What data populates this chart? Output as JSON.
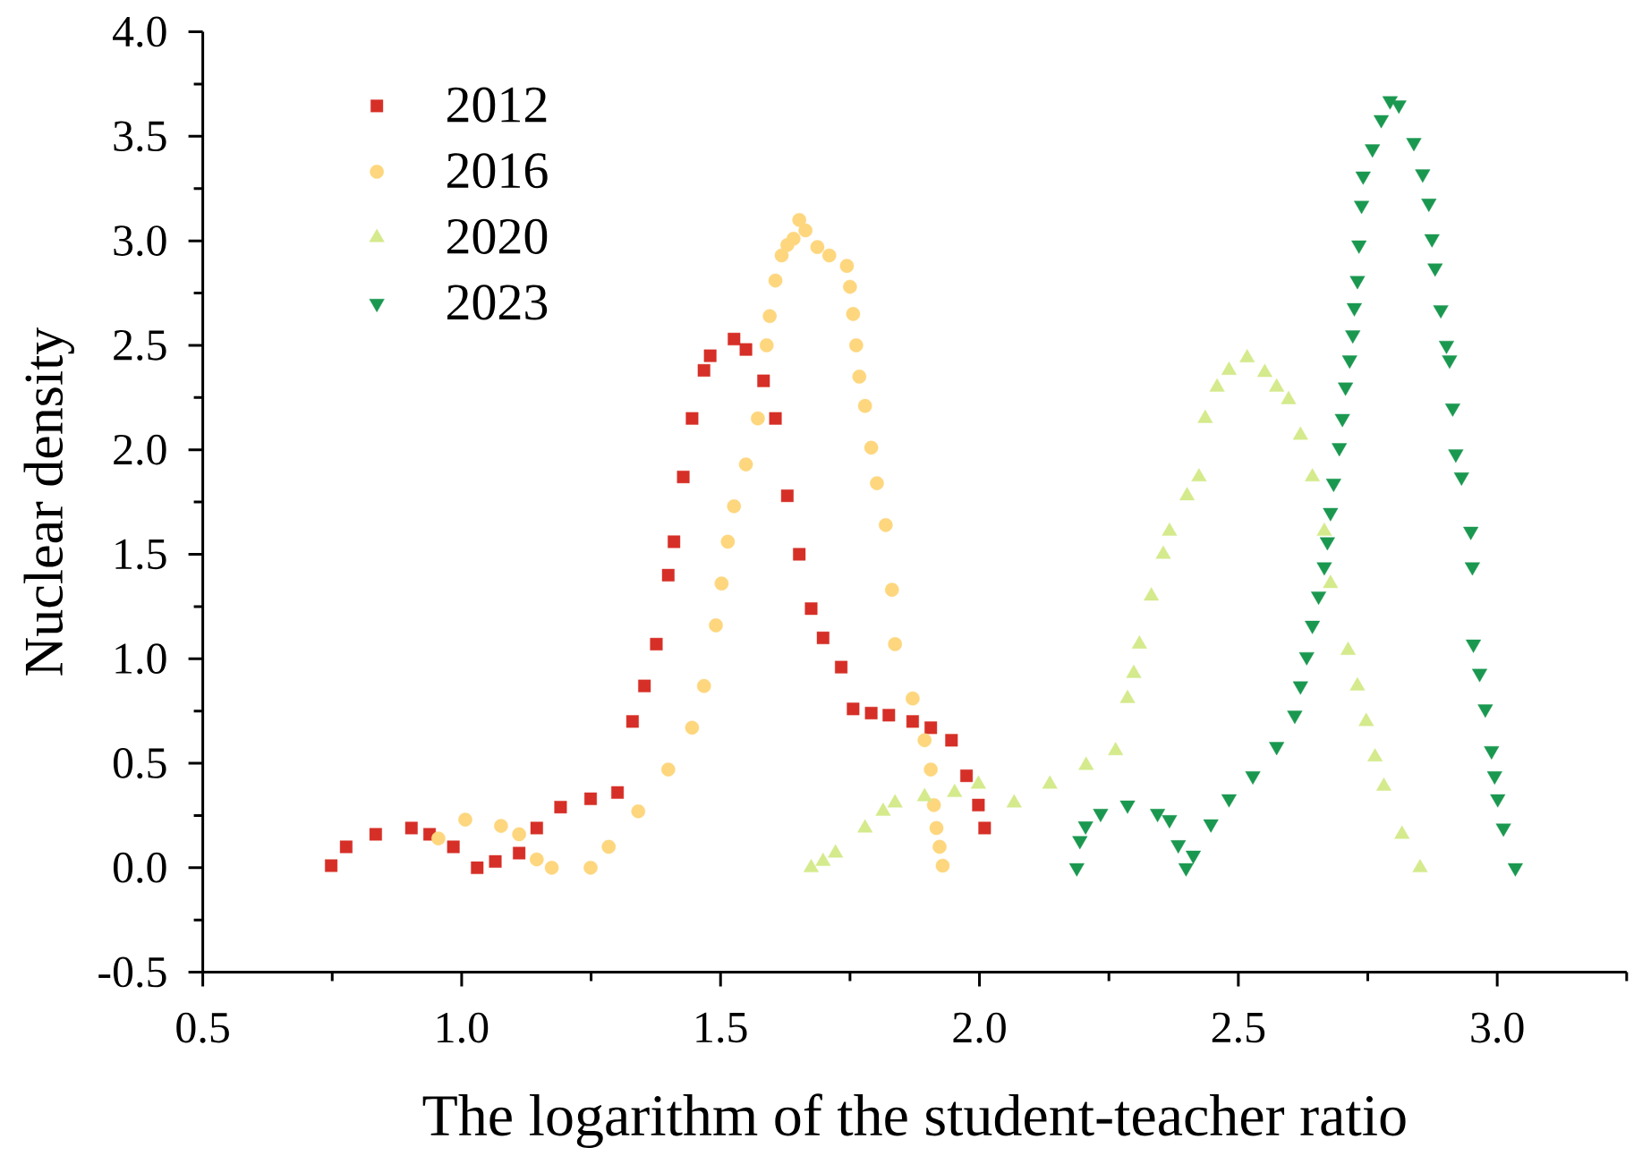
{
  "chart_data": {
    "type": "scatter",
    "xlabel": "The logarithm of the student-teacher ratio",
    "ylabel": "Nuclear density",
    "xlim": [
      0.5,
      3.25
    ],
    "ylim": [
      -0.5,
      4.0
    ],
    "xticks": [
      0.5,
      {
        "value": 0.75,
        "label": null
      },
      {
        "value": 1.0,
        "label": "1.0"
      },
      {
        "value": 1.25,
        "label": null
      },
      1.5,
      {
        "value": 1.75,
        "label": null
      },
      {
        "value": 2.0,
        "label": "2.0"
      },
      {
        "value": 2.25,
        "label": null
      },
      2.5,
      {
        "value": 2.75,
        "label": null
      },
      {
        "value": 3.0,
        "label": "3.0"
      },
      {
        "value": 3.25,
        "label": null
      }
    ],
    "yticks": [
      -0.5,
      {
        "value": -0.25,
        "label": null
      },
      {
        "value": 0.0,
        "label": "0.0"
      },
      {
        "value": 0.25,
        "label": null
      },
      0.5,
      {
        "value": 0.75,
        "label": null
      },
      {
        "value": 1.0,
        "label": "1.0"
      },
      {
        "value": 1.25,
        "label": null
      },
      1.5,
      {
        "value": 1.75,
        "label": null
      },
      {
        "value": 2.0,
        "label": "2.0"
      },
      {
        "value": 2.25,
        "label": null
      },
      2.5,
      {
        "value": 2.75,
        "label": null
      },
      {
        "value": 3.0,
        "label": "3.0"
      },
      {
        "value": 3.25,
        "label": null
      },
      3.5,
      {
        "value": 3.75,
        "label": null
      },
      {
        "value": 4.0,
        "label": "4.0"
      }
    ],
    "legend": "top left",
    "series": [
      {
        "name": "2012",
        "color": "#d62f27",
        "marker": "square",
        "x": [
          0.748,
          0.777,
          0.834,
          0.903,
          0.938,
          0.984,
          1.03,
          1.065,
          1.111,
          1.145,
          1.191,
          1.249,
          1.301,
          1.33,
          1.353,
          1.376,
          1.399,
          1.41,
          1.428,
          1.445,
          1.468,
          1.48,
          1.526,
          1.549,
          1.583,
          1.606,
          1.629,
          1.652,
          1.675,
          1.698,
          1.733,
          1.756,
          1.791,
          1.825,
          1.871,
          1.906,
          1.946,
          1.975,
          1.998,
          2.01
        ],
        "values": [
          0.01,
          0.1,
          0.16,
          0.19,
          0.16,
          0.1,
          0.0,
          0.03,
          0.07,
          0.19,
          0.29,
          0.33,
          0.36,
          0.7,
          0.87,
          1.07,
          1.4,
          1.56,
          1.87,
          2.15,
          2.38,
          2.45,
          2.53,
          2.48,
          2.33,
          2.15,
          1.78,
          1.5,
          1.24,
          1.1,
          0.96,
          0.76,
          0.74,
          0.73,
          0.7,
          0.67,
          0.61,
          0.44,
          0.3,
          0.19
        ]
      },
      {
        "name": "2016",
        "color": "#fdd67e",
        "marker": "circle",
        "x": [
          0.955,
          1.007,
          1.076,
          1.111,
          1.145,
          1.174,
          1.249,
          1.284,
          1.341,
          1.399,
          1.445,
          1.468,
          1.491,
          1.502,
          1.514,
          1.526,
          1.549,
          1.572,
          1.589,
          1.595,
          1.606,
          1.618,
          1.629,
          1.641,
          1.652,
          1.664,
          1.687,
          1.71,
          1.744,
          1.75,
          1.756,
          1.762,
          1.768,
          1.779,
          1.791,
          1.802,
          1.819,
          1.831,
          1.837,
          1.871,
          1.894,
          1.906,
          1.912,
          1.917,
          1.923,
          1.929
        ],
        "values": [
          0.14,
          0.23,
          0.2,
          0.16,
          0.04,
          0.0,
          0.0,
          0.1,
          0.27,
          0.47,
          0.67,
          0.87,
          1.16,
          1.36,
          1.56,
          1.73,
          1.93,
          2.15,
          2.5,
          2.64,
          2.81,
          2.93,
          2.98,
          3.01,
          3.1,
          3.05,
          2.97,
          2.93,
          2.88,
          2.78,
          2.65,
          2.5,
          2.35,
          2.21,
          2.01,
          1.84,
          1.64,
          1.33,
          1.07,
          0.81,
          0.61,
          0.47,
          0.3,
          0.19,
          0.1,
          0.01
        ]
      },
      {
        "name": "2020",
        "color": "#d4ea8c",
        "marker": "triangle",
        "x": [
          1.675,
          1.698,
          1.722,
          1.779,
          1.814,
          1.837,
          1.894,
          1.952,
          1.998,
          2.067,
          2.136,
          2.206,
          2.263,
          2.286,
          2.298,
          2.309,
          2.332,
          2.355,
          2.367,
          2.401,
          2.424,
          2.436,
          2.459,
          2.482,
          2.517,
          2.551,
          2.574,
          2.597,
          2.62,
          2.643,
          2.666,
          2.678,
          2.712,
          2.73,
          2.747,
          2.764,
          2.781,
          2.816,
          2.851
        ],
        "values": [
          0.0,
          0.03,
          0.07,
          0.19,
          0.27,
          0.31,
          0.34,
          0.36,
          0.4,
          0.31,
          0.4,
          0.49,
          0.56,
          0.81,
          0.93,
          1.07,
          1.3,
          1.5,
          1.61,
          1.78,
          1.87,
          2.15,
          2.3,
          2.38,
          2.44,
          2.37,
          2.3,
          2.24,
          2.07,
          1.87,
          1.61,
          1.36,
          1.04,
          0.87,
          0.7,
          0.53,
          0.39,
          0.16,
          0.0
        ]
      },
      {
        "name": "2023",
        "color": "#1b9850",
        "marker": "triangle-down",
        "x": [
          2.188,
          2.194,
          2.205,
          2.234,
          2.286,
          2.344,
          2.367,
          2.384,
          2.399,
          2.413,
          2.447,
          2.482,
          2.528,
          2.574,
          2.609,
          2.62,
          2.632,
          2.643,
          2.655,
          2.666,
          2.672,
          2.678,
          2.684,
          2.695,
          2.701,
          2.707,
          2.715,
          2.721,
          2.724,
          2.73,
          2.733,
          2.738,
          2.741,
          2.759,
          2.776,
          2.793,
          2.81,
          2.839,
          2.856,
          2.868,
          2.874,
          2.88,
          2.891,
          2.902,
          2.908,
          2.914,
          2.92,
          2.931,
          2.949,
          2.952,
          2.954,
          2.966,
          2.977,
          2.989,
          2.995,
          3.001,
          3.012,
          3.035
        ],
        "values": [
          0.0,
          0.13,
          0.2,
          0.26,
          0.3,
          0.26,
          0.23,
          0.11,
          0.0,
          0.06,
          0.21,
          0.33,
          0.44,
          0.58,
          0.73,
          0.87,
          1.01,
          1.16,
          1.3,
          1.44,
          1.56,
          1.7,
          1.84,
          2.01,
          2.15,
          2.3,
          2.43,
          2.55,
          2.68,
          2.81,
          2.98,
          3.17,
          3.31,
          3.44,
          3.58,
          3.67,
          3.65,
          3.47,
          3.32,
          3.18,
          3.01,
          2.87,
          2.67,
          2.5,
          2.43,
          2.2,
          1.98,
          1.87,
          1.61,
          1.44,
          1.07,
          0.93,
          0.76,
          0.56,
          0.44,
          0.33,
          0.19,
          0.0
        ]
      }
    ]
  }
}
